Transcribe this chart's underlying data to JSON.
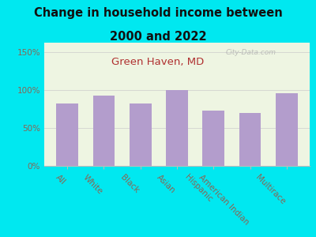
{
  "title_line1": "Change in household income between",
  "title_line2": "2000 and 2022",
  "subtitle": "Green Haven, MD",
  "watermark": "City-Data.com",
  "categories": [
    "All",
    "White",
    "Black",
    "Asian",
    "Hispanic",
    "American Indian",
    "Multirace"
  ],
  "values": [
    82,
    92,
    82,
    100,
    73,
    70,
    96
  ],
  "bar_color": "#b39dcc",
  "background_outer": "#00e8f0",
  "background_inner": "#eef5e2",
  "title_color": "#111111",
  "subtitle_color": "#b03030",
  "tick_label_color": "#886655",
  "ytick_labels": [
    "0%",
    "50%",
    "100%",
    "150%"
  ],
  "ytick_values": [
    0,
    50,
    100,
    150
  ],
  "ylim": [
    0,
    162
  ],
  "title_fontsize": 10.5,
  "subtitle_fontsize": 9.5,
  "tick_fontsize": 7.5,
  "xlabel_rotation": -45
}
